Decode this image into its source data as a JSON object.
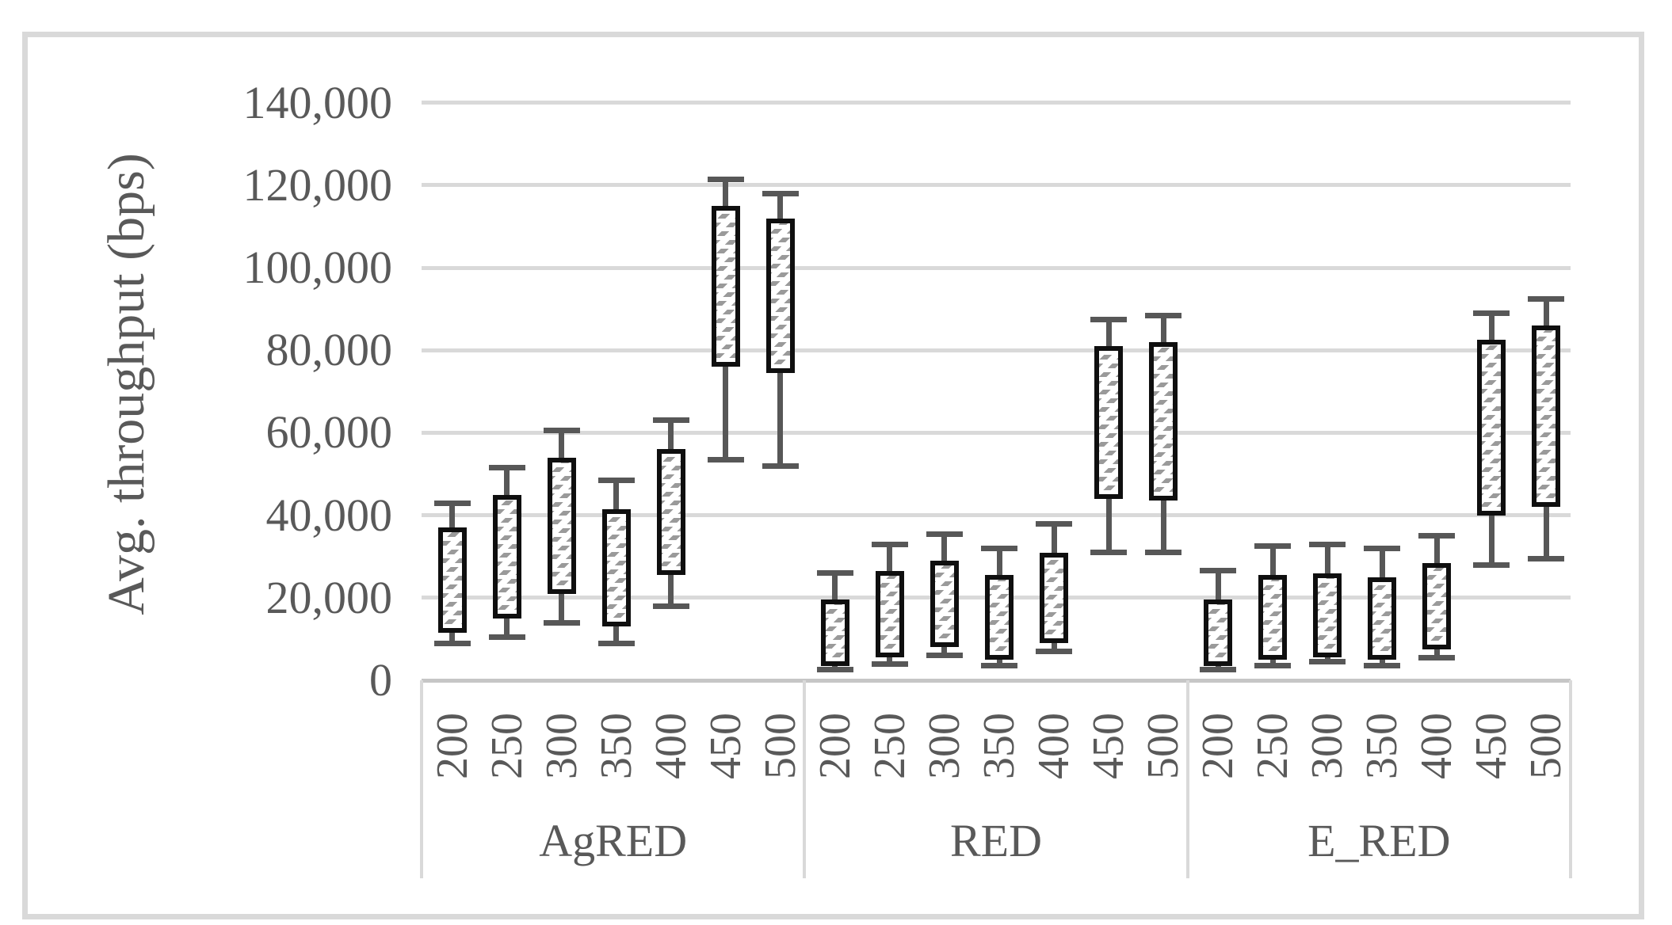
{
  "figure": {
    "background": "#ffffff",
    "border_color": "#d9d9d9",
    "text_color": "#595959",
    "gridline_color": "#d9d9d9",
    "axis_line_color": "#c6c6c6",
    "whisker_color": "#575757",
    "box_border_color": "#0f0f0f",
    "box_hatch_color": "#9a9a9a",
    "y_axis": {
      "title": "Avg. throughput (bps)",
      "tick_labels": [
        "140,000",
        "120,000",
        "100,000",
        "80,000",
        "60,000",
        "40,000",
        "20,000",
        "0"
      ],
      "tick_values": [
        140000,
        120000,
        100000,
        80000,
        60000,
        40000,
        20000,
        0
      ]
    },
    "x_axis": {
      "group_labels": [
        "AgRED",
        "RED",
        "E_RED"
      ],
      "category_labels": [
        "200",
        "250",
        "300",
        "350",
        "400",
        "450",
        "500"
      ]
    }
  },
  "chart_data": {
    "type": "box-whisker-column",
    "title": "",
    "xlabel": "",
    "ylabel": "Avg. throughput (bps)",
    "ylim": [
      0,
      140000
    ],
    "y_step": 20000,
    "grid": "horizontal",
    "legend": "none",
    "categories": [
      200,
      250,
      300,
      350,
      400,
      450,
      500
    ],
    "series": [
      {
        "name": "AgRED",
        "bars": [
          {
            "category": "200",
            "whisker_low": 9000,
            "box_low": 11500,
            "box_high": 37000,
            "whisker_high": 43000
          },
          {
            "category": "250",
            "whisker_low": 10500,
            "box_low": 15000,
            "box_high": 45000,
            "whisker_high": 51500
          },
          {
            "category": "300",
            "whisker_low": 14000,
            "box_low": 21000,
            "box_high": 54000,
            "whisker_high": 60500
          },
          {
            "category": "350",
            "whisker_low": 9000,
            "box_low": 13000,
            "box_high": 41500,
            "whisker_high": 48500
          },
          {
            "category": "400",
            "whisker_low": 18000,
            "box_low": 25500,
            "box_high": 56000,
            "whisker_high": 63000
          },
          {
            "category": "450",
            "whisker_low": 53500,
            "box_low": 76000,
            "box_high": 115000,
            "whisker_high": 121500
          },
          {
            "category": "500",
            "whisker_low": 52000,
            "box_low": 74500,
            "box_high": 112000,
            "whisker_high": 118000
          }
        ]
      },
      {
        "name": "RED",
        "bars": [
          {
            "category": "200",
            "whisker_low": 2500,
            "box_low": 3500,
            "box_high": 19500,
            "whisker_high": 26000
          },
          {
            "category": "250",
            "whisker_low": 4000,
            "box_low": 5500,
            "box_high": 26500,
            "whisker_high": 33000
          },
          {
            "category": "300",
            "whisker_low": 6000,
            "box_low": 8000,
            "box_high": 29000,
            "whisker_high": 35500
          },
          {
            "category": "350",
            "whisker_low": 3500,
            "box_low": 5000,
            "box_high": 25500,
            "whisker_high": 32000
          },
          {
            "category": "400",
            "whisker_low": 7000,
            "box_low": 9000,
            "box_high": 31000,
            "whisker_high": 38000
          },
          {
            "category": "450",
            "whisker_low": 31000,
            "box_low": 44000,
            "box_high": 81000,
            "whisker_high": 87500
          },
          {
            "category": "500",
            "whisker_low": 31000,
            "box_low": 43500,
            "box_high": 82000,
            "whisker_high": 88500
          }
        ]
      },
      {
        "name": "E_RED",
        "bars": [
          {
            "category": "200",
            "whisker_low": 2500,
            "box_low": 3500,
            "box_high": 19500,
            "whisker_high": 26500
          },
          {
            "category": "250",
            "whisker_low": 3500,
            "box_low": 5000,
            "box_high": 25500,
            "whisker_high": 32500
          },
          {
            "category": "300",
            "whisker_low": 4500,
            "box_low": 5500,
            "box_high": 26000,
            "whisker_high": 33000
          },
          {
            "category": "350",
            "whisker_low": 3500,
            "box_low": 5000,
            "box_high": 25000,
            "whisker_high": 32000
          },
          {
            "category": "400",
            "whisker_low": 5500,
            "box_low": 7500,
            "box_high": 28500,
            "whisker_high": 35000
          },
          {
            "category": "450",
            "whisker_low": 28000,
            "box_low": 40000,
            "box_high": 82500,
            "whisker_high": 89000
          },
          {
            "category": "500",
            "whisker_low": 29500,
            "box_low": 42000,
            "box_high": 86000,
            "whisker_high": 92500
          }
        ]
      }
    ]
  }
}
